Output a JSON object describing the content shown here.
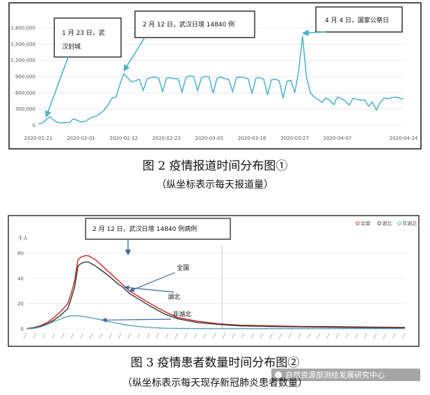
{
  "chart_data": [
    {
      "type": "line",
      "title": "",
      "ylim": [
        0,
        1900000
      ],
      "y_ticks": [
        "0",
        "300,000",
        "600,000",
        "900,000",
        "1,200,000",
        "1,500,000",
        "1,800,000"
      ],
      "y_tick_values": [
        0,
        300000,
        600000,
        900000,
        1200000,
        1500000,
        1800000
      ],
      "x_ticks": [
        "2020-01-21",
        "2020-02-01",
        "2020-02-12",
        "2020-02-23",
        "2020-03-05",
        "2020-03-16",
        "2020-03-27",
        "2020-04-07",
        "2020-04-24"
      ],
      "x_tick_days": [
        0,
        11,
        22,
        33,
        44,
        55,
        66,
        77,
        94
      ],
      "series": [
        {
          "color": "#4bb0c8",
          "days": [
            0,
            1,
            2,
            3,
            4,
            5,
            6,
            7,
            8,
            9,
            10,
            11,
            12,
            13,
            14,
            15,
            16,
            17,
            18,
            19,
            20,
            21,
            22,
            23,
            24,
            25,
            26,
            27,
            28,
            29,
            30,
            31,
            32,
            33,
            34,
            35,
            36,
            37,
            38,
            39,
            40,
            41,
            42,
            43,
            44,
            45,
            46,
            47,
            48,
            49,
            50,
            51,
            52,
            53,
            54,
            55,
            56,
            57,
            58,
            59,
            60,
            61,
            62,
            63,
            64,
            65,
            66,
            67,
            68,
            69,
            70,
            71,
            72,
            73,
            74,
            75,
            76,
            77,
            78,
            79,
            80,
            81,
            82,
            83,
            84,
            85,
            86,
            87,
            88,
            89,
            90,
            91,
            92,
            93,
            94
          ],
          "values": [
            30000,
            35000,
            100000,
            160000,
            90000,
            50000,
            40000,
            50000,
            45000,
            120000,
            90000,
            60000,
            70000,
            110000,
            150000,
            170000,
            220000,
            280000,
            380000,
            500000,
            520000,
            750000,
            950000,
            880000,
            800000,
            820000,
            850000,
            640000,
            860000,
            880000,
            890000,
            870000,
            620000,
            870000,
            880000,
            860000,
            860000,
            610000,
            880000,
            910000,
            900000,
            640000,
            880000,
            900000,
            890000,
            590000,
            870000,
            890000,
            860000,
            850000,
            620000,
            880000,
            890000,
            880000,
            860000,
            590000,
            870000,
            880000,
            850000,
            560000,
            840000,
            850000,
            820000,
            500000,
            810000,
            830000,
            600000,
            1000000,
            1650000,
            900000,
            600000,
            520000,
            480000,
            420000,
            500000,
            460000,
            380000,
            520000,
            490000,
            450000,
            370000,
            500000,
            480000,
            460000,
            470000,
            350000,
            430000,
            280000,
            420000,
            500000,
            490000,
            510000,
            520000,
            500000,
            480000
          ]
        }
      ],
      "annotations": [
        {
          "text_lines": [
            "1 月 23 日，武",
            "汉封城"
          ],
          "day": 2,
          "value": 100000
        },
        {
          "text_lines": [
            "2 月 12 日，武汉日增 14840 例"
          ],
          "day": 22,
          "value": 950000
        },
        {
          "text_lines": [
            "4 月 4 日，国家公祭日"
          ],
          "day": 68,
          "value": 1650000
        }
      ],
      "caption": "图 2  疫情报道时间分布图①",
      "subcaption": "（纵坐标表示每天报道量）"
    },
    {
      "type": "line",
      "ylabel": "千人",
      "ylim": [
        0,
        65
      ],
      "y_ticks": [
        "0",
        "20",
        "40",
        "60"
      ],
      "y_tick_values": [
        0,
        20,
        40,
        60
      ],
      "x": [
        0,
        2,
        4,
        6,
        8,
        10,
        12,
        13,
        14,
        15,
        16,
        17,
        18,
        20,
        22,
        24,
        26,
        28,
        30,
        33,
        36,
        40,
        44,
        50,
        56,
        62,
        70,
        80,
        90,
        100,
        110
      ],
      "series": [
        {
          "name": "全国",
          "color": "#cc2222",
          "values": [
            0.2,
            1,
            2.5,
            5,
            9,
            14,
            20,
            28,
            38,
            55,
            57,
            58,
            58,
            55,
            50,
            45,
            40,
            35,
            30,
            25,
            20,
            14,
            9,
            6,
            4,
            3,
            2.5,
            2,
            1.8,
            1.5,
            1.2
          ]
        },
        {
          "name": "湖北",
          "color": "#333333",
          "values": [
            0.1,
            0.8,
            2,
            4,
            7,
            11,
            16,
            24,
            33,
            50,
            52,
            53,
            53,
            50,
            46,
            42,
            37,
            33,
            28,
            23,
            18,
            12,
            8,
            5,
            3.5,
            2.5,
            2,
            1.6,
            1.4,
            1.1,
            0.9
          ]
        },
        {
          "name": "非湖北",
          "color": "#5aa0b8",
          "values": [
            0.1,
            0.4,
            1.5,
            3.5,
            6,
            8,
            10,
            10.3,
            10.5,
            10.3,
            10,
            9.7,
            9.2,
            8.2,
            7,
            5.8,
            4.7,
            3.6,
            2.7,
            1.8,
            1.2,
            0.6,
            0.4,
            0.3,
            0.3,
            0.3,
            0.3,
            0.3,
            0.3,
            0.3,
            0.3
          ]
        }
      ],
      "legend": [
        "全国",
        "湖北",
        "非湖北"
      ],
      "annotation": "2 月 12 日，武汉日增 14840 例病例",
      "caption": "图 3 疫情患者数量时间分布图②",
      "subcaption": "（纵坐标表示每天现存新冠肺炎患者数量）"
    }
  ],
  "watermark": "自然资源部测绘发展研究中心"
}
